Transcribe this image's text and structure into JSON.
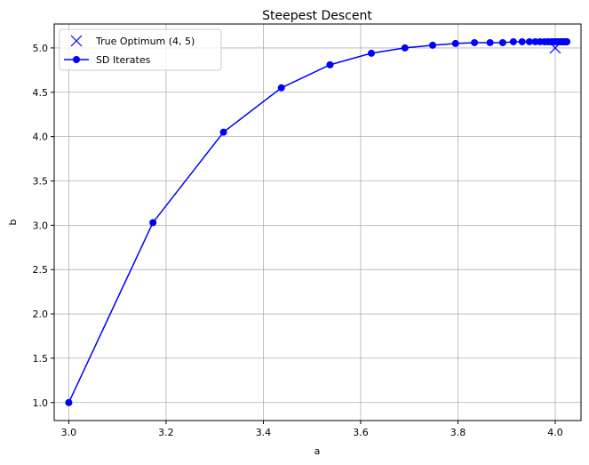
{
  "chart_data": {
    "type": "line",
    "title": "Steepest Descent",
    "xlabel": "a",
    "ylabel": "b",
    "xlim": [
      2.97,
      4.053
    ],
    "ylim": [
      0.797,
      5.27
    ],
    "grid": true,
    "legend_position": "top-left",
    "x_ticks": [
      "3.0",
      "3.2",
      "3.4",
      "3.6",
      "3.8",
      "4.0"
    ],
    "y_ticks": [
      "1.0",
      "1.5",
      "2.0",
      "2.5",
      "3.0",
      "3.5",
      "4.0",
      "4.5",
      "5.0"
    ],
    "series": [
      {
        "name": "True Optimum (4, 5)",
        "marker": "x",
        "color": "#0000ff",
        "x": [
          4.0
        ],
        "y": [
          5.0
        ]
      },
      {
        "name": "SD Iterates",
        "marker": "o",
        "color": "#0000ff",
        "x": [
          3.0,
          3.173,
          3.318,
          3.437,
          3.537,
          3.622,
          3.691,
          3.748,
          3.795,
          3.834,
          3.866,
          3.892,
          3.914,
          3.932,
          3.947,
          3.959,
          3.969,
          3.978,
          3.985,
          3.991,
          3.996,
          4.0,
          4.004,
          4.007,
          4.01,
          4.012,
          4.014,
          4.016,
          4.018,
          4.019,
          4.02,
          4.021,
          4.022,
          4.023,
          4.024
        ],
        "y": [
          1.0,
          3.03,
          4.05,
          4.55,
          4.81,
          4.94,
          5.0,
          5.03,
          5.05,
          5.06,
          5.06,
          5.06,
          5.07,
          5.07,
          5.07,
          5.07,
          5.07,
          5.07,
          5.07,
          5.07,
          5.07,
          5.07,
          5.07,
          5.07,
          5.07,
          5.07,
          5.07,
          5.07,
          5.07,
          5.07,
          5.07,
          5.07,
          5.07,
          5.07,
          5.07
        ]
      }
    ]
  }
}
